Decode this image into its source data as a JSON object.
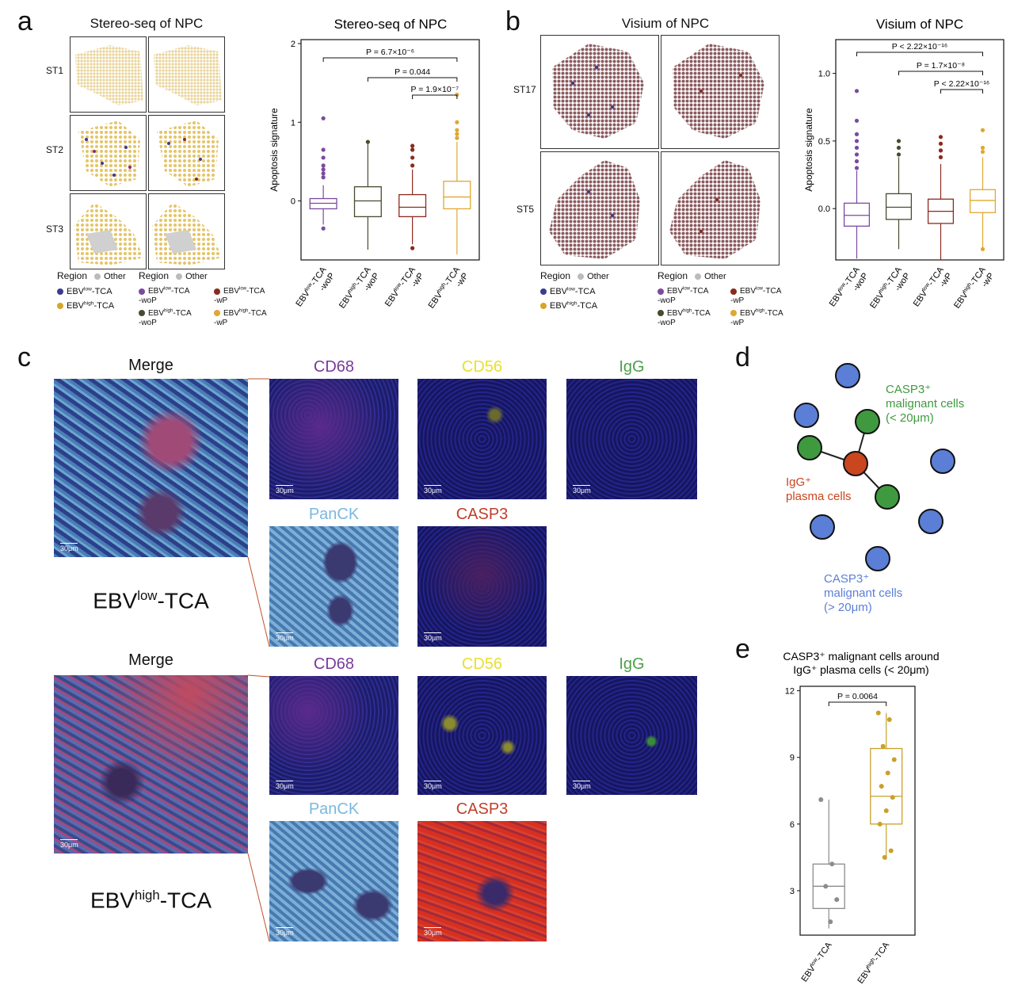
{
  "panels": {
    "a": "a",
    "b": "b",
    "c": "c",
    "d": "d",
    "e": "e"
  },
  "a": {
    "map_title": "Stereo-seq of NPC",
    "rows": [
      "ST1",
      "ST2",
      "ST3"
    ],
    "legend1": {
      "title": "Region",
      "other": "Other",
      "items": [
        "EBVlow-TCA",
        "EBVhigh-TCA"
      ],
      "colors": [
        "#3b3b8f",
        "#d6a52a"
      ]
    },
    "legend2": {
      "title": "Region",
      "other": "Other",
      "items": [
        "EBVlow-TCA\n-woP",
        "EBVlow-TCA\n-wP",
        "EBVhigh-TCA\n-woP",
        "EBVhigh-TCA\n-wP"
      ]
    }
  },
  "b": {
    "map_title": "Visium of NPC",
    "rows": [
      "ST17",
      "ST5"
    ],
    "legend1": {
      "title": "Region",
      "other": "Other",
      "items": [
        "EBVlow-TCA",
        "EBVhigh-TCA"
      ]
    },
    "legend2": {
      "title": "Region",
      "other": "Other",
      "items": [
        "EBVlow-TCA\n-woP",
        "EBVlow-TCA\n-wP",
        "EBVhigh-TCA\n-woP",
        "EBVhigh-TCA\n-wP"
      ]
    }
  },
  "c": {
    "merge": "Merge",
    "group1": "EBVlow-TCA",
    "group2": "EBVhigh-TCA",
    "channels": [
      "CD68",
      "CD56",
      "IgG",
      "PanCK",
      "CASP3"
    ],
    "scale": "30μm"
  },
  "d": {
    "label_green": "CASP3⁺\nmalignant cells\n(< 20μm)",
    "label_red": "IgG⁺\nplasma cells",
    "label_blue": "CASP3⁺\nmalignant cells\n(> 20μm)"
  },
  "chart_data": [
    {
      "type": "box",
      "title": "Stereo-seq of NPC",
      "ylabel": "Apoptosis signature",
      "ylim": [
        -0.75,
        2.05
      ],
      "yticks": [
        0,
        1,
        2
      ],
      "categories": [
        "EBVlow-TCA\n-woP",
        "EBVhigh-TCA\n-woP",
        "EBVlow-TCA\n-wP",
        "EBVhigh-TCA\n-wP"
      ],
      "colors": [
        "#7b4aa0",
        "#4a4a2e",
        "#8b2a1e",
        "#e0a830"
      ],
      "boxes": [
        {
          "q1": -0.1,
          "median": -0.03,
          "q3": 0.03,
          "low": -0.3,
          "high": 0.2,
          "outliers": [
            1.05,
            0.65,
            0.55,
            0.45,
            0.4,
            0.35,
            0.3,
            -0.35
          ]
        },
        {
          "q1": -0.2,
          "median": 0.0,
          "q3": 0.18,
          "low": -0.62,
          "high": 0.75,
          "outliers": [
            0.75
          ]
        },
        {
          "q1": -0.2,
          "median": -0.08,
          "q3": 0.08,
          "low": -0.55,
          "high": 0.4,
          "outliers": [
            0.7,
            0.65,
            0.55,
            0.45,
            -0.6
          ]
        },
        {
          "q1": -0.1,
          "median": 0.05,
          "q3": 0.25,
          "low": -0.68,
          "high": 0.75,
          "outliers": [
            1.35,
            1.0,
            0.9,
            0.85,
            0.8
          ]
        }
      ],
      "comparisons": [
        {
          "from": 0,
          "to": 3,
          "label": "P = 6.7×10⁻⁶"
        },
        {
          "from": 1,
          "to": 3,
          "label": "P = 0.044"
        },
        {
          "from": 2,
          "to": 3,
          "label": "P = 1.9×10⁻⁷"
        }
      ]
    },
    {
      "type": "box",
      "title": "Visium of NPC",
      "ylabel": "Apoptosis signature",
      "ylim": [
        -0.38,
        1.25
      ],
      "yticks": [
        0.0,
        0.5,
        1.0
      ],
      "categories": [
        "EBVlow-TCA\n-woP",
        "EBVhigh-TCA\n-woP",
        "EBVlow-TCA\n-wP",
        "EBVhigh-TCA\n-wP"
      ],
      "colors": [
        "#7b4aa0",
        "#4a4a2e",
        "#8b2a1e",
        "#e0a830"
      ],
      "boxes": [
        {
          "q1": -0.13,
          "median": -0.05,
          "q3": 0.04,
          "low": -0.37,
          "high": 0.28,
          "outliers": [
            0.87,
            0.65,
            0.55,
            0.5,
            0.45,
            0.4,
            0.35,
            0.3
          ]
        },
        {
          "q1": -0.08,
          "median": 0.01,
          "q3": 0.11,
          "low": -0.3,
          "high": 0.38,
          "outliers": [
            0.5,
            0.45,
            0.4
          ]
        },
        {
          "q1": -0.11,
          "median": -0.02,
          "q3": 0.07,
          "low": -0.38,
          "high": 0.33,
          "outliers": [
            0.53,
            0.48,
            0.43,
            0.38
          ]
        },
        {
          "q1": -0.03,
          "median": 0.06,
          "q3": 0.14,
          "low": -0.3,
          "high": 0.38,
          "outliers": [
            0.58,
            0.45,
            0.42,
            -0.3
          ]
        }
      ],
      "comparisons": [
        {
          "from": 0,
          "to": 3,
          "label": "P < 2.22×10⁻¹⁶"
        },
        {
          "from": 1,
          "to": 3,
          "label": "P = 1.7×10⁻⁸"
        },
        {
          "from": 2,
          "to": 3,
          "label": "P < 2.22×10⁻¹⁶"
        }
      ]
    },
    {
      "type": "box",
      "title": "CASP3⁺ malignant cells around\nIgG⁺ plasma cells (< 20μm)",
      "ylabel": "",
      "ylim": [
        1,
        12.2
      ],
      "yticks": [
        3,
        6,
        9,
        12
      ],
      "categories": [
        "EBVlow-TCA",
        "EBVhigh-TCA"
      ],
      "colors": [
        "#8c8c8c",
        "#c9a02a"
      ],
      "boxes": [
        {
          "q1": 2.2,
          "median": 3.2,
          "q3": 4.2,
          "low": 1.3,
          "high": 7.1,
          "points": [
            7.1,
            4.2,
            3.2,
            2.6,
            1.6
          ]
        },
        {
          "q1": 6.0,
          "median": 7.25,
          "q3": 9.4,
          "low": 4.4,
          "high": 11.0,
          "points": [
            11.0,
            10.7,
            9.5,
            8.9,
            8.3,
            7.7,
            7.2,
            6.6,
            6.0,
            4.8,
            4.5
          ]
        }
      ],
      "comparisons": [
        {
          "from": 0,
          "to": 1,
          "label": "P = 0.0064"
        }
      ]
    }
  ]
}
